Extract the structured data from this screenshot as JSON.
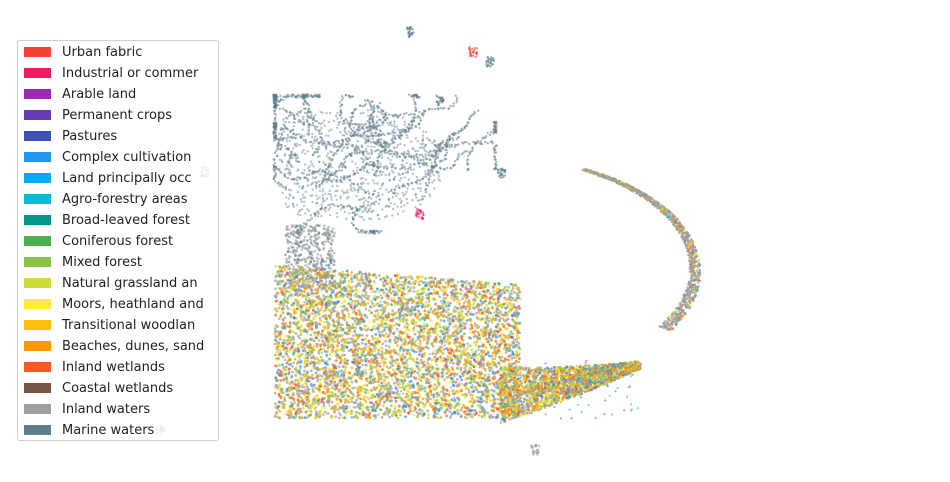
{
  "chart_data": {
    "type": "scatter",
    "title": "",
    "xlabel": "",
    "ylabel": "",
    "axes_visible": false,
    "grid": false,
    "legend_position": "left",
    "series": [
      {
        "name": "Urban fabric",
        "color": "#f44336"
      },
      {
        "name": "Industrial or commer",
        "color": "#e91e63"
      },
      {
        "name": "Arable land",
        "color": "#9c27b0"
      },
      {
        "name": "Permanent crops",
        "color": "#673ab7"
      },
      {
        "name": "Pastures",
        "color": "#3f51b5"
      },
      {
        "name": "Complex cultivation",
        "color": "#2196f3"
      },
      {
        "name": "Land principally occ",
        "color": "#03a9f4"
      },
      {
        "name": "Agro-forestry areas",
        "color": "#00bcd4"
      },
      {
        "name": "Broad-leaved forest",
        "color": "#009688"
      },
      {
        "name": "Coniferous forest",
        "color": "#4caf50"
      },
      {
        "name": "Mixed forest",
        "color": "#8bc34a"
      },
      {
        "name": "Natural grassland an",
        "color": "#cddc39"
      },
      {
        "name": "Moors, heathland and",
        "color": "#ffeb3b"
      },
      {
        "name": "Transitional woodlan",
        "color": "#ffc107"
      },
      {
        "name": "Beaches, dunes, sand",
        "color": "#ff9800"
      },
      {
        "name": "Inland wetlands",
        "color": "#ff5722"
      },
      {
        "name": "Coastal wetlands",
        "color": "#795548"
      },
      {
        "name": "Inland waters",
        "color": "#9e9e9e"
      },
      {
        "name": "Marine waters",
        "color": "#607d8b"
      }
    ]
  }
}
